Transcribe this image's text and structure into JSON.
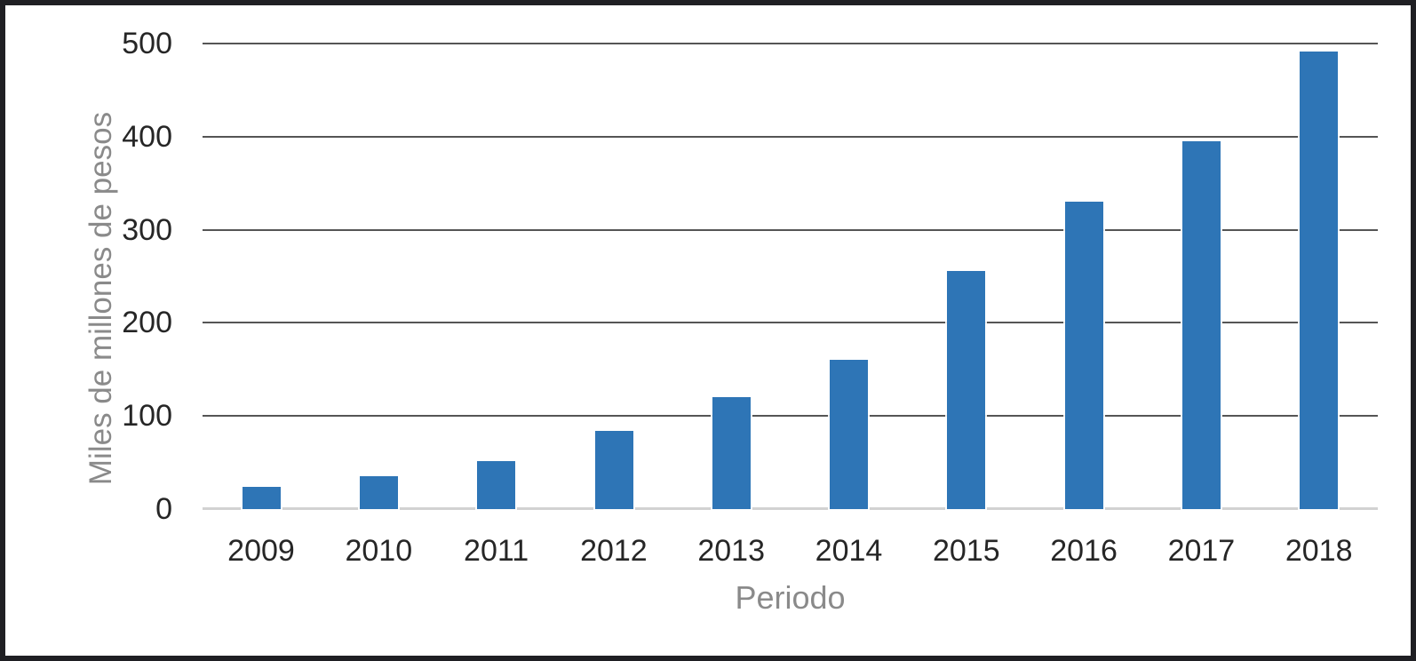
{
  "chart_data": {
    "type": "bar",
    "title": "",
    "xlabel": "Periodo",
    "ylabel": "Miles de millones de pesos",
    "categories": [
      "2009",
      "2010",
      "2011",
      "2012",
      "2013",
      "2014",
      "2015",
      "2016",
      "2017",
      "2018"
    ],
    "values": [
      24,
      35,
      52,
      84,
      120,
      160,
      256,
      330,
      395,
      491
    ],
    "ylim": [
      0,
      500
    ],
    "yticks": [
      0,
      100,
      200,
      300,
      400,
      500
    ],
    "grid": "horizontal",
    "legend": "none",
    "colors": {
      "bar": "#2E75B6",
      "gridline": "#555555",
      "axis_line": "#D2D2D2",
      "tick_label": "#262626",
      "axis_title": "#8A8A8A",
      "frame_border": "#1F1F23",
      "background": "#FFFFFF"
    }
  }
}
